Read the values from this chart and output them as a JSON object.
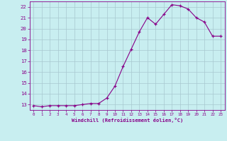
{
  "x": [
    0,
    1,
    2,
    3,
    4,
    5,
    6,
    7,
    8,
    9,
    10,
    11,
    12,
    13,
    14,
    15,
    16,
    17,
    18,
    19,
    20,
    21,
    22,
    23
  ],
  "y": [
    12.9,
    12.8,
    12.9,
    12.9,
    12.9,
    12.9,
    13.0,
    13.1,
    13.1,
    13.6,
    14.7,
    16.5,
    18.1,
    19.7,
    21.0,
    20.4,
    21.3,
    22.2,
    22.1,
    21.8,
    21.0,
    20.6,
    19.3,
    19.3
  ],
  "line_color": "#880088",
  "marker": "+",
  "marker_color": "#880088",
  "bg_color": "#c8eef0",
  "grid_color": "#a8c8d0",
  "axis_color": "#880088",
  "tick_color": "#880088",
  "xlabel": "Windchill (Refroidissement éolien,°C)",
  "ylabel_ticks": [
    13,
    14,
    15,
    16,
    17,
    18,
    19,
    20,
    21,
    22
  ],
  "ylim": [
    12.5,
    22.5
  ],
  "xlim": [
    -0.5,
    23.5
  ],
  "xticks": [
    0,
    1,
    2,
    3,
    4,
    5,
    6,
    7,
    8,
    9,
    10,
    11,
    12,
    13,
    14,
    15,
    16,
    17,
    18,
    19,
    20,
    21,
    22,
    23
  ],
  "font_color": "#880088",
  "xlabel_fontsize": 5.0,
  "xtick_fontsize": 4.2,
  "ytick_fontsize": 5.2
}
